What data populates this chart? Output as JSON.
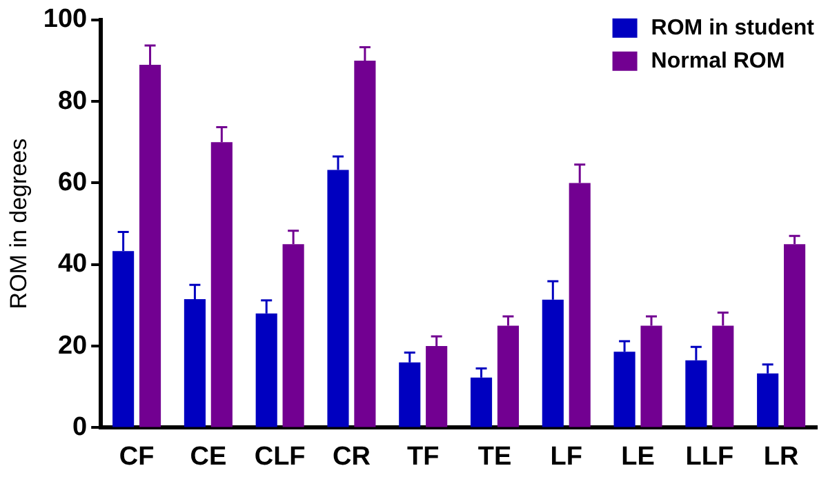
{
  "chart_data": {
    "type": "bar",
    "ylabel": "ROM in degrees",
    "categories": [
      "CF",
      "CE",
      "CLF",
      "CR",
      "TF",
      "TE",
      "LF",
      "LE",
      "LLF",
      "LR"
    ],
    "series": [
      {
        "name": "ROM in student",
        "color": "#0000c0",
        "values": [
          43.3,
          31.5,
          28,
          63.2,
          16,
          12.3,
          31.4,
          18.6,
          16.5,
          13.3
        ],
        "errors": [
          [
            43.3,
            48
          ],
          [
            31.5,
            35
          ],
          [
            28,
            31.2
          ],
          [
            63.2,
            66.5
          ],
          [
            16,
            18.4
          ],
          [
            12.3,
            14.5
          ],
          [
            31.4,
            35.9
          ],
          [
            18.6,
            21.2
          ],
          [
            16.5,
            19.8
          ],
          [
            13.3,
            15.5
          ]
        ]
      },
      {
        "name": "Normal ROM",
        "color": "#720091",
        "values": [
          89,
          70,
          45,
          90,
          20,
          25,
          60,
          25,
          25,
          45
        ],
        "errors": [
          [
            89,
            93.7
          ],
          [
            70,
            73.7
          ],
          [
            45,
            48.3
          ],
          [
            90,
            93.3
          ],
          [
            20,
            22.4
          ],
          [
            25,
            27.3
          ],
          [
            60,
            64.5
          ],
          [
            25,
            27.3
          ],
          [
            25,
            28.2
          ],
          [
            45,
            47
          ]
        ]
      }
    ],
    "ylim": [
      0,
      100
    ],
    "yticks": [
      0,
      20,
      40,
      60,
      80,
      100
    ],
    "grid": false,
    "legend": "top right"
  }
}
